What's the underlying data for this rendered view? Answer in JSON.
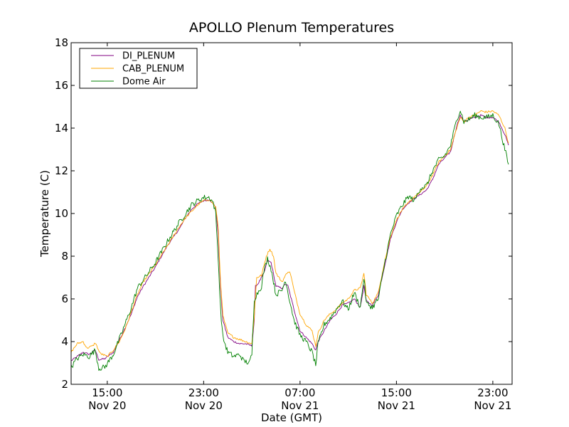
{
  "chart_data": {
    "type": "line",
    "title": "APOLLO Plenum Temperatures",
    "xlabel": "Date (GMT)",
    "ylabel": "Temperature (C)",
    "xlim": [
      12.0,
      48.6
    ],
    "ylim": [
      2,
      18
    ],
    "yticks": [
      2,
      4,
      6,
      8,
      10,
      12,
      14,
      16,
      18
    ],
    "xticks": [
      {
        "x": 15,
        "line1": "15:00",
        "line2": "Nov 20"
      },
      {
        "x": 23,
        "line1": "23:00",
        "line2": "Nov 20"
      },
      {
        "x": 31,
        "line1": "07:00",
        "line2": "Nov 21"
      },
      {
        "x": 39,
        "line1": "15:00",
        "line2": "Nov 21"
      },
      {
        "x": 47,
        "line1": "23:00",
        "line2": "Nov 21"
      }
    ],
    "x_units": "hours since Nov 20 00:00 GMT",
    "legend_position": "top-left",
    "series": [
      {
        "name": "DI_PLENUM",
        "color": "#800080",
        "points": [
          [
            12.0,
            3.1
          ],
          [
            12.5,
            3.3
          ],
          [
            13.0,
            3.5
          ],
          [
            13.5,
            3.4
          ],
          [
            14.0,
            3.6
          ],
          [
            14.3,
            3.15
          ],
          [
            14.8,
            3.2
          ],
          [
            15.5,
            3.5
          ],
          [
            16.2,
            4.3
          ],
          [
            17.0,
            5.3
          ],
          [
            17.5,
            6.1
          ],
          [
            18.0,
            6.6
          ],
          [
            19.0,
            7.5
          ],
          [
            20.0,
            8.5
          ],
          [
            21.0,
            9.3
          ],
          [
            21.5,
            9.8
          ],
          [
            22.0,
            10.2
          ],
          [
            22.5,
            10.45
          ],
          [
            23.0,
            10.6
          ],
          [
            23.5,
            10.65
          ],
          [
            24.0,
            10.3
          ],
          [
            24.2,
            9.0
          ],
          [
            24.4,
            6.5
          ],
          [
            24.6,
            5.0
          ],
          [
            25.0,
            4.2
          ],
          [
            25.5,
            4.0
          ],
          [
            26.0,
            3.9
          ],
          [
            26.5,
            3.9
          ],
          [
            27.0,
            3.8
          ],
          [
            27.2,
            5.0
          ],
          [
            27.3,
            6.6
          ],
          [
            27.5,
            6.7
          ],
          [
            28.0,
            7.2
          ],
          [
            28.3,
            7.8
          ],
          [
            28.6,
            7.7
          ],
          [
            29.0,
            6.6
          ],
          [
            29.5,
            6.5
          ],
          [
            29.8,
            6.7
          ],
          [
            30.0,
            6.6
          ],
          [
            30.5,
            5.5
          ],
          [
            31.0,
            4.5
          ],
          [
            31.5,
            4.2
          ],
          [
            32.0,
            3.9
          ],
          [
            32.3,
            3.6
          ],
          [
            32.5,
            4.0
          ],
          [
            33.0,
            4.5
          ],
          [
            33.5,
            5.0
          ],
          [
            34.0,
            5.3
          ],
          [
            34.5,
            5.7
          ],
          [
            35.0,
            5.8
          ],
          [
            35.5,
            6.0
          ],
          [
            36.0,
            5.6
          ],
          [
            36.3,
            6.6
          ],
          [
            36.5,
            5.9
          ],
          [
            37.0,
            5.7
          ],
          [
            37.5,
            6.2
          ],
          [
            38.0,
            7.5
          ],
          [
            38.5,
            8.8
          ],
          [
            39.0,
            9.6
          ],
          [
            39.5,
            10.2
          ],
          [
            40.0,
            10.5
          ],
          [
            40.5,
            10.7
          ],
          [
            41.0,
            10.9
          ],
          [
            41.5,
            11.1
          ],
          [
            42.0,
            11.6
          ],
          [
            42.5,
            12.3
          ],
          [
            43.0,
            12.6
          ],
          [
            43.5,
            12.9
          ],
          [
            44.0,
            14.1
          ],
          [
            44.3,
            14.6
          ],
          [
            44.6,
            14.3
          ],
          [
            45.0,
            14.4
          ],
          [
            45.5,
            14.5
          ],
          [
            46.0,
            14.6
          ],
          [
            46.5,
            14.5
          ],
          [
            47.0,
            14.5
          ],
          [
            47.5,
            14.3
          ],
          [
            48.0,
            13.7
          ],
          [
            48.3,
            13.2
          ]
        ]
      },
      {
        "name": "CAB_PLENUM",
        "color": "#ffa500",
        "points": [
          [
            12.0,
            3.5
          ],
          [
            12.5,
            3.9
          ],
          [
            13.0,
            4.0
          ],
          [
            13.3,
            3.7
          ],
          [
            13.8,
            3.8
          ],
          [
            14.0,
            3.95
          ],
          [
            14.4,
            3.45
          ],
          [
            15.0,
            3.3
          ],
          [
            15.5,
            3.6
          ],
          [
            16.0,
            4.0
          ],
          [
            16.5,
            4.6
          ],
          [
            17.0,
            5.4
          ],
          [
            17.5,
            6.2
          ],
          [
            18.0,
            6.8
          ],
          [
            19.0,
            7.6
          ],
          [
            20.0,
            8.5
          ],
          [
            21.0,
            9.4
          ],
          [
            21.5,
            9.8
          ],
          [
            22.0,
            10.1
          ],
          [
            22.5,
            10.4
          ],
          [
            23.0,
            10.6
          ],
          [
            23.5,
            10.65
          ],
          [
            24.0,
            10.3
          ],
          [
            24.2,
            9.4
          ],
          [
            24.4,
            6.8
          ],
          [
            24.6,
            5.2
          ],
          [
            25.0,
            4.4
          ],
          [
            25.5,
            4.2
          ],
          [
            26.0,
            4.1
          ],
          [
            26.5,
            4.0
          ],
          [
            27.0,
            3.9
          ],
          [
            27.2,
            5.2
          ],
          [
            27.4,
            7.0
          ],
          [
            27.8,
            7.1
          ],
          [
            28.2,
            8.0
          ],
          [
            28.5,
            8.35
          ],
          [
            28.8,
            8.0
          ],
          [
            29.0,
            7.2
          ],
          [
            29.5,
            6.8
          ],
          [
            30.0,
            7.3
          ],
          [
            30.2,
            7.2
          ],
          [
            30.5,
            6.4
          ],
          [
            31.0,
            5.3
          ],
          [
            31.5,
            4.8
          ],
          [
            32.0,
            4.5
          ],
          [
            32.3,
            3.8
          ],
          [
            32.5,
            4.4
          ],
          [
            33.0,
            5.0
          ],
          [
            33.5,
            5.3
          ],
          [
            34.0,
            5.5
          ],
          [
            34.5,
            5.8
          ],
          [
            35.0,
            6.0
          ],
          [
            35.5,
            6.4
          ],
          [
            36.0,
            6.5
          ],
          [
            36.3,
            7.2
          ],
          [
            36.5,
            6.2
          ],
          [
            37.0,
            5.8
          ],
          [
            37.5,
            6.3
          ],
          [
            38.0,
            7.7
          ],
          [
            38.5,
            8.9
          ],
          [
            39.0,
            9.7
          ],
          [
            39.5,
            10.2
          ],
          [
            40.0,
            10.5
          ],
          [
            40.5,
            10.8
          ],
          [
            41.0,
            11.0
          ],
          [
            41.5,
            11.3
          ],
          [
            42.0,
            11.8
          ],
          [
            42.5,
            12.4
          ],
          [
            43.0,
            12.7
          ],
          [
            43.5,
            13.0
          ],
          [
            44.0,
            14.0
          ],
          [
            44.3,
            14.5
          ],
          [
            44.6,
            14.3
          ],
          [
            45.0,
            14.5
          ],
          [
            45.5,
            14.6
          ],
          [
            46.0,
            14.8
          ],
          [
            46.5,
            14.75
          ],
          [
            47.0,
            14.8
          ],
          [
            47.5,
            14.6
          ],
          [
            48.0,
            14.0
          ],
          [
            48.3,
            13.3
          ]
        ]
      },
      {
        "name": "Dome Air",
        "color": "#008000",
        "points": [
          [
            12.0,
            2.8
          ],
          [
            12.5,
            3.2
          ],
          [
            13.0,
            3.4
          ],
          [
            13.5,
            3.3
          ],
          [
            14.0,
            3.6
          ],
          [
            14.3,
            2.75
          ],
          [
            14.8,
            2.8
          ],
          [
            15.5,
            3.4
          ],
          [
            16.2,
            4.4
          ],
          [
            17.0,
            5.6
          ],
          [
            17.5,
            6.5
          ],
          [
            18.0,
            6.9
          ],
          [
            19.0,
            7.7
          ],
          [
            20.0,
            8.7
          ],
          [
            21.0,
            9.6
          ],
          [
            21.5,
            10.0
          ],
          [
            22.0,
            10.4
          ],
          [
            22.5,
            10.6
          ],
          [
            23.0,
            10.75
          ],
          [
            23.5,
            10.75
          ],
          [
            23.8,
            10.5
          ],
          [
            24.0,
            10.0
          ],
          [
            24.2,
            8.0
          ],
          [
            24.4,
            5.5
          ],
          [
            24.6,
            4.2
          ],
          [
            25.0,
            3.5
          ],
          [
            25.5,
            3.3
          ],
          [
            26.0,
            3.4
          ],
          [
            26.3,
            3.1
          ],
          [
            26.8,
            3.0
          ],
          [
            27.0,
            3.4
          ],
          [
            27.2,
            6.0
          ],
          [
            27.5,
            6.3
          ],
          [
            27.8,
            6.6
          ],
          [
            28.0,
            7.3
          ],
          [
            28.3,
            7.9
          ],
          [
            28.6,
            7.4
          ],
          [
            29.0,
            6.2
          ],
          [
            29.5,
            6.4
          ],
          [
            29.8,
            6.9
          ],
          [
            30.0,
            6.3
          ],
          [
            30.5,
            5.0
          ],
          [
            31.0,
            4.3
          ],
          [
            31.5,
            4.0
          ],
          [
            32.0,
            3.5
          ],
          [
            32.3,
            2.9
          ],
          [
            32.5,
            3.9
          ],
          [
            33.0,
            4.8
          ],
          [
            33.5,
            5.1
          ],
          [
            34.0,
            5.5
          ],
          [
            34.5,
            5.9
          ],
          [
            35.0,
            5.5
          ],
          [
            35.5,
            6.3
          ],
          [
            36.0,
            5.6
          ],
          [
            36.3,
            7.0
          ],
          [
            36.5,
            5.8
          ],
          [
            37.0,
            5.6
          ],
          [
            37.5,
            6.0
          ],
          [
            38.0,
            7.6
          ],
          [
            38.5,
            9.0
          ],
          [
            39.0,
            9.9
          ],
          [
            39.5,
            10.4
          ],
          [
            40.0,
            10.8
          ],
          [
            40.5,
            10.6
          ],
          [
            41.0,
            11.2
          ],
          [
            41.5,
            11.3
          ],
          [
            42.0,
            12.0
          ],
          [
            42.5,
            12.5
          ],
          [
            43.0,
            12.7
          ],
          [
            43.5,
            13.2
          ],
          [
            44.0,
            14.4
          ],
          [
            44.3,
            14.85
          ],
          [
            44.6,
            14.3
          ],
          [
            45.0,
            14.4
          ],
          [
            45.5,
            14.6
          ],
          [
            46.0,
            14.5
          ],
          [
            46.5,
            14.5
          ],
          [
            47.0,
            14.6
          ],
          [
            47.5,
            14.2
          ],
          [
            48.0,
            13.0
          ],
          [
            48.3,
            12.3
          ]
        ]
      }
    ]
  }
}
